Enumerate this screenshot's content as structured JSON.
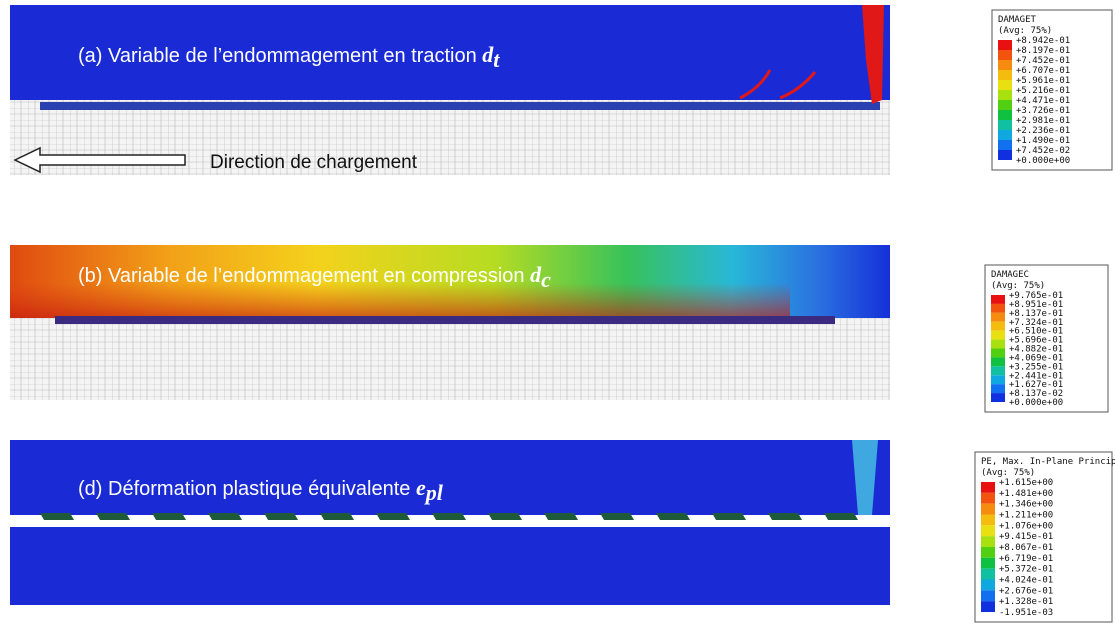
{
  "panels": [
    {
      "label": "(a)  Variable de l’endommagement en traction",
      "symbol": "d",
      "subscript": "t"
    },
    {
      "label": "(b)  Variable de l’endommagement en compression",
      "symbol": "d",
      "subscript": "c"
    },
    {
      "label": "(d)  Déformation plastique équivalente",
      "symbol": "e",
      "subscript": "pl"
    }
  ],
  "annotation": "Direction de chargement",
  "legends": [
    {
      "title": "DAMAGET",
      "avg": "(Avg: 75%)",
      "values": [
        "+8.942e-01",
        "+8.197e-01",
        "+7.452e-01",
        "+6.707e-01",
        "+5.961e-01",
        "+5.216e-01",
        "+4.471e-01",
        "+3.726e-01",
        "+2.981e-01",
        "+2.236e-01",
        "+1.490e-01",
        "+7.452e-02",
        "+0.000e+00"
      ]
    },
    {
      "title": "DAMAGEC",
      "avg": "(Avg: 75%)",
      "values": [
        "+9.765e-01",
        "+8.951e-01",
        "+8.137e-01",
        "+7.324e-01",
        "+6.510e-01",
        "+5.696e-01",
        "+4.882e-01",
        "+4.069e-01",
        "+3.255e-01",
        "+2.441e-01",
        "+1.627e-01",
        "+8.137e-02",
        "+0.000e+00"
      ]
    },
    {
      "title": "PE, Max. In-Plane Principal",
      "avg": "(Avg: 75%)",
      "values": [
        "+1.615e+00",
        "+1.481e+00",
        "+1.346e+00",
        "+1.211e+00",
        "+1.076e+00",
        "+9.415e-01",
        "+8.067e-01",
        "+6.719e-01",
        "+5.372e-01",
        "+4.024e-01",
        "+2.676e-01",
        "+1.328e-01",
        "-1.951e-03"
      ]
    }
  ]
}
